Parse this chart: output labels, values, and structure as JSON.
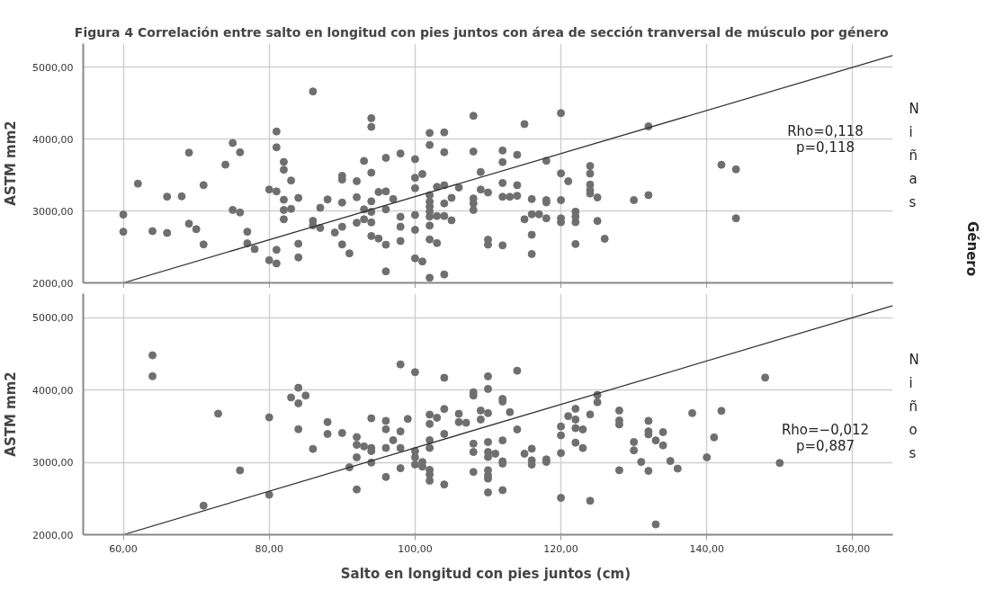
{
  "chart_data": [
    {
      "type": "scatter",
      "title": "Figura 4 Correlación  entre  salto en longitud con pies juntos con área  de sección tranversal de músculo por género",
      "ylabel": "ASTM mm2",
      "xlim": [
        54.5,
        165.5
      ],
      "ylim": [
        2000,
        5330
      ],
      "xticks": [
        60,
        80,
        100,
        120,
        140,
        160
      ],
      "yticks": [
        {
          "value": 2000,
          "label": "2000,00"
        },
        {
          "value": 3000,
          "label": "3000,00"
        },
        {
          "value": 4000,
          "label": "4000,00"
        },
        {
          "value": 5000,
          "label": "5000,00"
        }
      ],
      "tick_labels": "y",
      "grid": true,
      "annotations": [
        "Rho=0,118",
        "p=0,118",
        "Niñas",
        "Género"
      ],
      "series": [
        {
          "marker": "circle",
          "color": "#6f6f6f",
          "x": [
            60,
            60,
            62,
            64,
            66,
            66,
            68,
            69,
            69,
            70,
            71,
            71,
            74,
            75,
            75,
            76,
            76,
            77,
            77,
            78,
            80,
            80,
            81,
            81,
            81,
            81,
            81,
            82,
            82,
            82,
            82,
            82,
            83,
            83,
            84,
            84,
            84,
            86,
            86,
            86,
            87,
            87,
            88,
            89,
            90,
            90,
            90,
            90,
            90,
            91,
            92,
            92,
            92,
            93,
            93,
            93,
            94,
            94,
            94,
            94,
            94,
            94,
            94,
            95,
            95,
            96,
            96,
            96,
            96,
            96,
            97,
            98,
            98,
            98,
            98,
            100,
            100,
            100,
            100,
            100,
            100,
            101,
            101,
            102,
            102,
            102,
            102,
            102,
            102,
            102,
            102,
            102,
            102,
            103,
            103,
            103,
            104,
            104,
            104,
            104,
            104,
            104,
            105,
            105,
            106,
            108,
            108,
            108,
            108,
            108,
            109,
            109,
            110,
            110,
            110,
            112,
            112,
            112,
            112,
            112,
            113,
            114,
            114,
            114,
            115,
            115,
            116,
            116,
            116,
            116,
            117,
            118,
            118,
            118,
            118,
            120,
            120,
            120,
            120,
            120,
            121,
            122,
            122,
            122,
            122,
            124,
            124,
            124,
            124,
            124,
            125,
            125,
            126,
            130,
            132,
            132,
            142,
            144,
            144
          ],
          "values": [
            2950,
            2712,
            3381,
            2720,
            3200,
            2695,
            3204,
            3813,
            2824,
            2747,
            3360,
            2535,
            3645,
            3947,
            3015,
            3817,
            2980,
            2712,
            2550,
            2470,
            3300,
            2315,
            4107,
            3887,
            3273,
            2460,
            2270,
            3683,
            3575,
            3157,
            3015,
            2885,
            3425,
            3030,
            3183,
            2544,
            2354,
            4664,
            2863,
            2800,
            3045,
            2764,
            3161,
            2700,
            3490,
            3438,
            3118,
            2781,
            2535,
            2410,
            3416,
            3192,
            2837,
            3697,
            3023,
            2885,
            4292,
            4171,
            3533,
            3135,
            2988,
            2842,
            2652,
            3265,
            2617,
            3740,
            3273,
            3023,
            2531,
            2160,
            3166,
            3800,
            2920,
            2781,
            2583,
            3722,
            3463,
            3317,
            2945,
            2738,
            2341,
            3515,
            2298,
            4086,
            3920,
            3221,
            3129,
            3060,
            2991,
            2922,
            2798,
            2604,
            2071,
            3336,
            2931,
            2554,
            4095,
            3819,
            3359,
            3106,
            2931,
            2117,
            3184,
            2871,
            3327,
            4325,
            3828,
            3175,
            3106,
            3014,
            3543,
            3299,
            3258,
            2600,
            2531,
            3842,
            3681,
            3391,
            3198,
            2522,
            3198,
            3782,
            3359,
            3212,
            4210,
            2885,
            3166,
            2954,
            2669,
            2402,
            2954,
            3699,
            3152,
            3120,
            2899,
            4362,
            3524,
            3152,
            2899,
            2844,
            3414,
            2991,
            2922,
            2844,
            2540,
            3626,
            3520,
            3368,
            3290,
            3244,
            3189,
            2862,
            2614,
            3152,
            4178,
            3221,
            3644,
            3580,
            2899
          ]
        },
        {
          "type": "line",
          "color": "#333333",
          "x": [
            60,
            165.5
          ],
          "values": [
            2000,
            5165
          ]
        }
      ]
    },
    {
      "type": "scatter",
      "xlabel": "Salto  en longitud con pies juntos (cm)",
      "ylabel": "ASTM mm2",
      "xlim": [
        54.5,
        165.5
      ],
      "ylim": [
        2000,
        5330
      ],
      "xticks": [
        {
          "value": 60,
          "label": "60,00"
        },
        {
          "value": 80,
          "label": "80,00"
        },
        {
          "value": 100,
          "label": "100,00"
        },
        {
          "value": 120,
          "label": "120,00"
        },
        {
          "value": 140,
          "label": "140,00"
        },
        {
          "value": 160,
          "label": "160,00"
        }
      ],
      "yticks": [
        {
          "value": 2000,
          "label": "2000,00"
        },
        {
          "value": 3000,
          "label": "3000,00"
        },
        {
          "value": 4000,
          "label": "4000,00"
        },
        {
          "value": 5000,
          "label": "5000,00"
        }
      ],
      "grid": true,
      "annotations": [
        "Rho=−0,012",
        "p=0,887",
        "Niños"
      ],
      "series": [
        {
          "marker": "circle",
          "color": "#6f6f6f",
          "x": [
            64,
            64,
            71,
            73,
            76,
            80,
            80,
            83,
            84,
            84,
            84,
            85,
            86,
            88,
            88,
            90,
            91,
            92,
            92,
            92,
            92,
            93,
            94,
            94,
            94,
            94,
            96,
            96,
            96,
            96,
            97,
            98,
            98,
            98,
            98,
            99,
            100,
            100,
            100,
            100,
            101,
            101,
            102,
            102,
            102,
            102,
            102,
            102,
            102,
            103,
            104,
            104,
            104,
            104,
            106,
            106,
            107,
            108,
            108,
            108,
            108,
            108,
            109,
            109,
            110,
            110,
            110,
            110,
            110,
            110,
            110,
            110,
            110,
            110,
            111,
            112,
            112,
            112,
            112,
            112,
            112,
            113,
            114,
            114,
            115,
            116,
            116,
            116,
            118,
            118,
            120,
            120,
            120,
            120,
            121,
            122,
            122,
            122,
            122,
            123,
            123,
            124,
            124,
            125,
            125,
            128,
            128,
            128,
            128,
            130,
            130,
            131,
            132,
            132,
            132,
            132,
            133,
            133,
            134,
            134,
            135,
            136,
            138,
            140,
            141,
            142,
            148,
            150
          ],
          "values": [
            4478,
            4189,
            2401,
            3672,
            2888,
            3620,
            2552,
            3896,
            4030,
            3815,
            3457,
            3922,
            3185,
            3556,
            3392,
            3405,
            2931,
            3349,
            3241,
            3069,
            2625,
            3220,
            3608,
            3198,
            3155,
            2996,
            3573,
            3457,
            3198,
            2797,
            3306,
            4353,
            3427,
            3198,
            2918,
            3599,
            4245,
            3155,
            2970,
            3069,
            3004,
            2940,
            3659,
            3530,
            3306,
            3198,
            2896,
            2832,
            2746,
            3616,
            4168,
            3737,
            3392,
            2694,
            3670,
            3555,
            3546,
            3968,
            3922,
            3257,
            3142,
            2867,
            3716,
            3592,
            4188,
            4014,
            3679,
            3280,
            3142,
            3073,
            2890,
            2821,
            2775,
            2583,
            3119,
            3876,
            3839,
            3303,
            3014,
            2982,
            2615,
            3693,
            4266,
            3454,
            3119,
            3188,
            3028,
            2968,
            3041,
            3005,
            3495,
            3372,
            3128,
            2509,
            3638,
            3739,
            3592,
            3472,
            3271,
            3454,
            3197,
            3661,
            2468,
            3931,
            3830,
            3716,
            3578,
            3523,
            2890,
            3280,
            3165,
            3005,
            3573,
            3427,
            3385,
            2881,
            3303,
            2142,
            3417,
            3234,
            3018,
            2913,
            3679,
            3069,
            3344,
            3711,
            4170,
            2991
          ]
        },
        {
          "type": "line",
          "color": "#333333",
          "x": [
            60,
            165.5
          ],
          "values": [
            2000,
            5165
          ]
        }
      ]
    }
  ]
}
